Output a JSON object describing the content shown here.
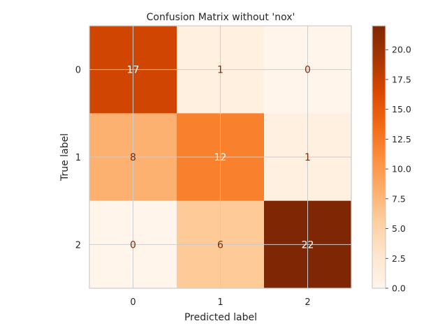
{
  "chart_data": {
    "type": "heatmap",
    "title": "Confusion Matrix without 'nox'",
    "xlabel": "Predicted label",
    "ylabel": "True label",
    "x_categories": [
      "0",
      "1",
      "2"
    ],
    "y_categories": [
      "0",
      "1",
      "2"
    ],
    "matrix": [
      [
        17,
        1,
        0
      ],
      [
        8,
        12,
        1
      ],
      [
        0,
        6,
        22
      ]
    ],
    "colormap": "Oranges",
    "colorbar": {
      "min": 0,
      "max": 22,
      "ticks": [
        0.0,
        2.5,
        5.0,
        7.5,
        10.0,
        12.5,
        15.0,
        17.5,
        20.0
      ],
      "tick_labels": [
        "0.0",
        "2.5",
        "5.0",
        "7.5",
        "10.0",
        "12.5",
        "15.0",
        "17.5",
        "20.0"
      ]
    },
    "grid": true
  }
}
